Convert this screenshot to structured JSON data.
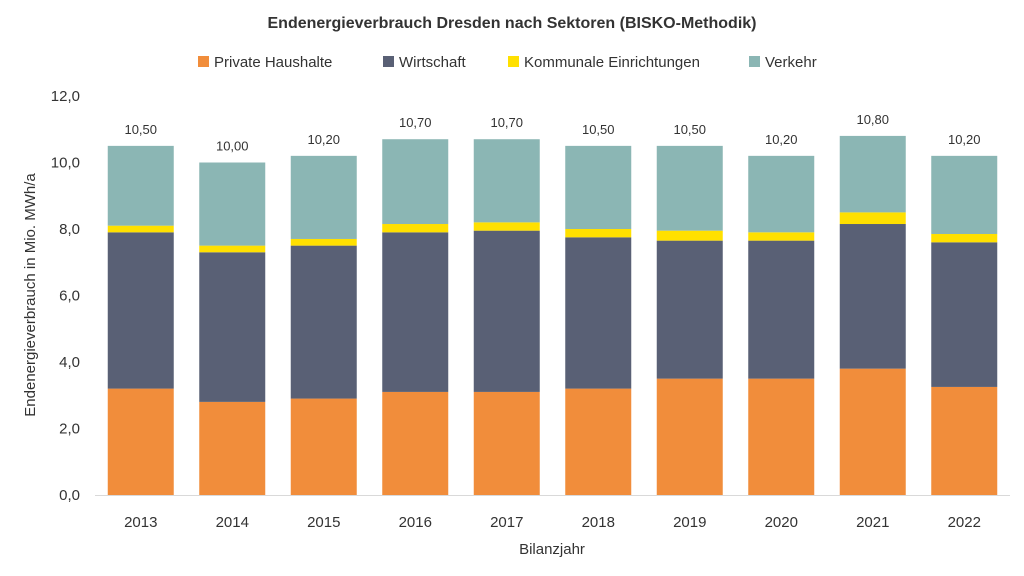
{
  "chart_data": {
    "type": "bar",
    "stacked": true,
    "title": "Endenergieverbrauch  Dresden nach Sektoren (BISKO-Methodik)",
    "xlabel": "Bilanzjahr",
    "ylabel": "Endenergieverbrauch in Mio. MWh/a",
    "ylim": [
      0,
      12
    ],
    "yticks": [
      "0,0",
      "2,0",
      "4,0",
      "6,0",
      "8,0",
      "10,0",
      "12,0"
    ],
    "grid": false,
    "legend_position": "top",
    "categories": [
      "2013",
      "2014",
      "2015",
      "2016",
      "2017",
      "2018",
      "2019",
      "2020",
      "2021",
      "2022"
    ],
    "series": [
      {
        "name": "Private Haushalte",
        "color": "#F18D3B",
        "values": [
          3.2,
          2.8,
          2.9,
          3.1,
          3.1,
          3.2,
          3.5,
          3.5,
          3.8,
          3.25
        ]
      },
      {
        "name": "Wirtschaft",
        "color": "#596075",
        "values": [
          4.7,
          4.5,
          4.6,
          4.8,
          4.85,
          4.55,
          4.15,
          4.15,
          4.35,
          4.35
        ]
      },
      {
        "name": "Kommunale Einrichtungen",
        "color": "#FFE000",
        "values": [
          0.2,
          0.2,
          0.2,
          0.25,
          0.25,
          0.25,
          0.3,
          0.25,
          0.35,
          0.25
        ]
      },
      {
        "name": "Verkehr",
        "color": "#8BB6B4",
        "values": [
          2.4,
          2.5,
          2.5,
          2.55,
          2.5,
          2.5,
          2.55,
          2.3,
          2.3,
          2.35
        ]
      }
    ],
    "totals": [
      "10,50",
      "10,00",
      "10,20",
      "10,70",
      "10,70",
      "10,50",
      "10,50",
      "10,20",
      "10,80",
      "10,20"
    ]
  }
}
